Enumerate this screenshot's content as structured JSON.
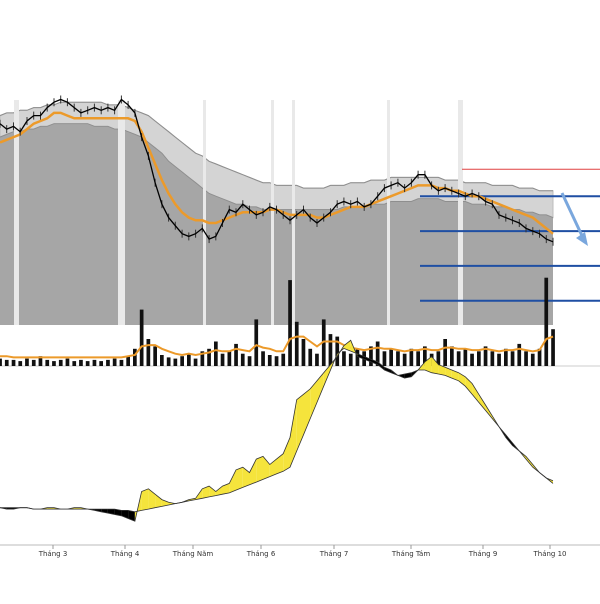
{
  "chart_data": {
    "type": "line",
    "x_axis_labels": [
      "Tháng 3",
      "Tháng 4",
      "Tháng Năm",
      "Tháng 6",
      "Tháng 7",
      "Tháng Tám",
      "Tháng 9",
      "Tháng 10"
    ],
    "colors": {
      "price": "#000000",
      "moving_average": "#ec9a2a",
      "band": "#9e9e9e",
      "target_lines": "#1f4fa3",
      "resistance_line": "#e04040",
      "arrow": "#7aa7dd",
      "oscillator_positive": "#f5e43c",
      "oscillator_negative": "#000000"
    },
    "price": [
      115,
      113,
      114,
      112,
      116,
      118,
      118,
      121,
      123,
      124,
      123,
      121,
      119,
      120,
      121,
      120,
      121,
      120,
      124,
      122,
      119,
      110,
      103,
      93,
      85,
      80,
      77,
      74,
      73,
      74,
      76,
      72,
      73,
      78,
      83,
      82,
      85,
      83,
      81,
      82,
      84,
      83,
      81,
      79,
      81,
      83,
      80,
      78,
      80,
      82,
      85,
      86,
      85,
      86,
      84,
      85,
      88,
      91,
      92,
      93,
      91,
      93,
      96,
      96,
      92,
      90,
      91,
      90,
      89,
      88,
      89,
      88,
      86,
      85,
      81,
      80,
      79,
      78,
      76,
      75,
      74,
      72,
      71
    ],
    "moving_average": [
      108,
      109,
      110,
      111,
      113,
      115,
      116,
      117,
      119,
      119,
      118,
      117,
      117,
      117,
      117,
      117,
      117,
      117,
      117,
      117,
      116,
      112,
      106,
      100,
      94,
      89,
      85,
      82,
      80,
      79,
      79,
      78,
      78,
      79,
      80,
      81,
      82,
      82,
      82,
      82,
      83,
      83,
      82,
      81,
      81,
      81,
      81,
      80,
      80,
      81,
      82,
      83,
      84,
      84,
      84,
      85,
      86,
      87,
      88,
      89,
      90,
      91,
      92,
      92,
      92,
      91,
      91,
      90,
      90,
      89,
      88,
      88,
      87,
      86,
      85,
      84,
      83,
      82,
      81,
      80,
      78,
      76,
      74
    ],
    "band_upper": [
      118,
      119,
      119,
      120,
      120,
      121,
      121,
      122,
      122,
      123,
      123,
      123,
      123,
      123,
      123,
      123,
      122,
      122,
      122,
      121,
      120,
      119,
      118,
      116,
      114,
      112,
      110,
      108,
      106,
      104,
      103,
      101,
      100,
      99,
      98,
      97,
      96,
      95,
      94,
      93,
      93,
      92,
      92,
      92,
      92,
      91,
      91,
      91,
      91,
      92,
      92,
      92,
      93,
      93,
      93,
      94,
      94,
      94,
      95,
      95,
      95,
      95,
      95,
      95,
      95,
      95,
      94,
      94,
      94,
      93,
      93,
      93,
      93,
      92,
      92,
      92,
      92,
      91,
      91,
      91,
      90,
      90,
      90
    ],
    "band_lower": [
      110,
      111,
      112,
      112,
      113,
      113,
      114,
      114,
      115,
      115,
      115,
      115,
      115,
      115,
      114,
      114,
      114,
      113,
      113,
      112,
      111,
      110,
      108,
      106,
      104,
      101,
      99,
      97,
      95,
      93,
      91,
      89,
      88,
      87,
      86,
      85,
      85,
      84,
      84,
      83,
      83,
      83,
      83,
      83,
      83,
      83,
      83,
      83,
      83,
      83,
      83,
      84,
      84,
      84,
      84,
      85,
      85,
      85,
      86,
      86,
      86,
      86,
      87,
      87,
      87,
      87,
      86,
      86,
      86,
      86,
      85,
      85,
      85,
      84,
      84,
      84,
      83,
      83,
      82,
      82,
      81,
      81,
      80
    ],
    "target_levels": [
      88,
      75,
      62,
      49
    ],
    "resistance_level": 98,
    "volume": [
      6,
      5,
      5,
      4,
      6,
      5,
      8,
      5,
      4,
      5,
      6,
      4,
      5,
      4,
      5,
      4,
      5,
      6,
      5,
      8,
      14,
      46,
      22,
      16,
      9,
      7,
      6,
      8,
      10,
      6,
      12,
      14,
      20,
      10,
      12,
      18,
      10,
      8,
      38,
      12,
      9,
      8,
      10,
      70,
      36,
      22,
      14,
      10,
      38,
      26,
      24,
      12,
      10,
      14,
      12,
      16,
      20,
      12,
      14,
      12,
      10,
      14,
      12,
      16,
      10,
      12,
      22,
      16,
      12,
      14,
      10,
      12,
      16,
      12,
      10,
      14,
      12,
      18,
      12,
      10,
      14,
      72,
      30
    ],
    "volume_average": [
      8,
      8,
      7,
      7,
      7,
      7,
      7,
      7,
      7,
      7,
      7,
      7,
      7,
      7,
      7,
      7,
      7,
      7,
      7,
      8,
      9,
      16,
      17,
      17,
      14,
      12,
      10,
      9,
      10,
      9,
      10,
      11,
      13,
      12,
      12,
      14,
      13,
      12,
      17,
      15,
      14,
      12,
      12,
      22,
      24,
      24,
      20,
      16,
      20,
      20,
      20,
      17,
      15,
      14,
      13,
      14,
      15,
      14,
      14,
      13,
      12,
      13,
      13,
      14,
      13,
      13,
      15,
      15,
      14,
      14,
      13,
      13,
      14,
      13,
      12,
      13,
      13,
      14,
      13,
      12,
      13,
      22,
      24
    ],
    "oscillator_a": [
      -2,
      -3,
      -3,
      -2,
      -2,
      -3,
      -3,
      -2,
      -2,
      -3,
      -3,
      -2,
      -2,
      -3,
      -4,
      -5,
      -6,
      -7,
      -8,
      -10,
      -12,
      10,
      12,
      8,
      4,
      2,
      1,
      2,
      4,
      5,
      12,
      14,
      10,
      14,
      16,
      26,
      28,
      24,
      34,
      36,
      30,
      34,
      38,
      50,
      78,
      82,
      86,
      92,
      98,
      104,
      110,
      118,
      122,
      110,
      108,
      106,
      104,
      100,
      98,
      96,
      94,
      95,
      100,
      106,
      110,
      104,
      102,
      100,
      98,
      95,
      90,
      82,
      74,
      66,
      58,
      50,
      44,
      40,
      36,
      30,
      24,
      20,
      18
    ],
    "oscillator_b": [
      -2,
      -2,
      -2,
      -2,
      -2,
      -3,
      -3,
      -3,
      -3,
      -3,
      -3,
      -3,
      -3,
      -3,
      -3,
      -3,
      -3,
      -3,
      -4,
      -4,
      -5,
      -4,
      -3,
      -2,
      -1,
      0,
      1,
      2,
      3,
      4,
      5,
      6,
      7,
      8,
      9,
      11,
      13,
      15,
      17,
      19,
      21,
      23,
      25,
      28,
      40,
      52,
      64,
      76,
      88,
      100,
      112,
      116,
      114,
      112,
      110,
      108,
      106,
      102,
      100,
      96,
      97,
      98,
      100,
      100,
      98,
      97,
      96,
      94,
      92,
      88,
      82,
      76,
      70,
      64,
      58,
      52,
      46,
      40,
      34,
      28,
      24,
      20,
      16
    ]
  }
}
